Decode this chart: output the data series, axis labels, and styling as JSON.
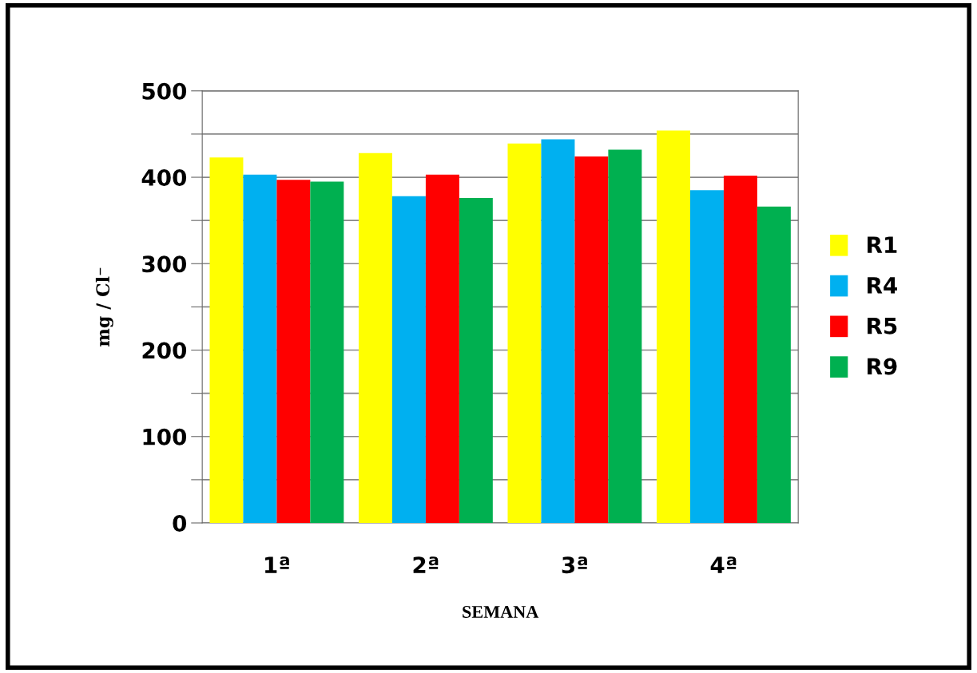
{
  "chart_data": {
    "type": "bar",
    "xlabel": "SEMANA",
    "ylabel": "mg / Cl⁻",
    "categories": [
      "1ª",
      "2ª",
      "3ª",
      "4ª"
    ],
    "series": [
      {
        "name": "R1",
        "color": "#ffff00",
        "values": [
          423,
          428,
          439,
          454
        ]
      },
      {
        "name": "R4",
        "color": "#00b0f0",
        "values": [
          403,
          378,
          444,
          385
        ]
      },
      {
        "name": "R5",
        "color": "#ff0000",
        "values": [
          397,
          403,
          424,
          402
        ]
      },
      {
        "name": "R9",
        "color": "#00b050",
        "values": [
          395,
          376,
          432,
          366
        ]
      }
    ],
    "ylim": [
      0,
      500
    ],
    "yticks": [
      0,
      {
        "value": 50,
        "label": null
      },
      100,
      {
        "value": 150,
        "label": null
      },
      200,
      {
        "value": 250,
        "label": null
      },
      300,
      {
        "value": 350,
        "label": null
      },
      400,
      {
        "value": 450,
        "label": null
      },
      500
    ],
    "grid": "y",
    "legend": "right"
  }
}
